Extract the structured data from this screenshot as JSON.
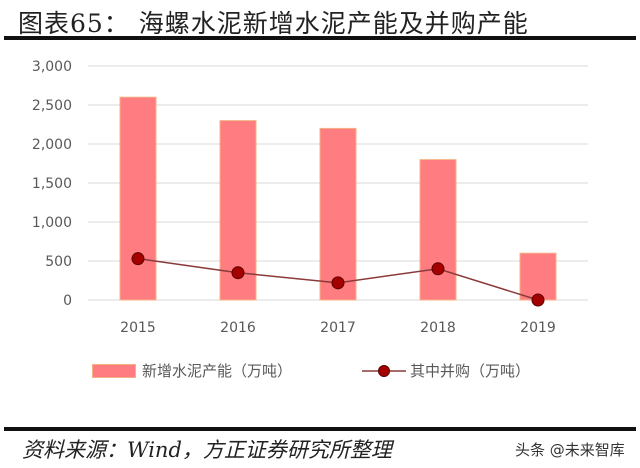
{
  "title": "图表65： 海螺水泥新增水泥产能及并购产能",
  "source": "资料来源：Wind，方正证券研究所整理",
  "watermark": "头条 @未来智库",
  "colors": {
    "bar": "#ff7c80",
    "bar_border": "#f4b183",
    "line": "#8b3a3a",
    "marker": "#a50000",
    "grid": "#d9d9d9"
  },
  "legend": {
    "bar_label": "新增水泥产能（万吨）",
    "line_label": "其中并购（万吨）"
  },
  "chart_data": {
    "type": "bar",
    "title": "海螺水泥新增水泥产能及并购产能",
    "xlabel": "",
    "ylabel": "",
    "categories": [
      "2015",
      "2016",
      "2017",
      "2018",
      "2019"
    ],
    "series": [
      {
        "name": "新增水泥产能（万吨）",
        "type": "bar",
        "values": [
          2600,
          2300,
          2200,
          1800,
          600
        ]
      },
      {
        "name": "其中并购（万吨）",
        "type": "line",
        "values": [
          530,
          350,
          220,
          400,
          0
        ]
      }
    ],
    "ylim": [
      0,
      3000
    ],
    "yticks": [
      "0",
      "500",
      "1,000",
      "1,500",
      "2,000",
      "2,500",
      "3,000"
    ],
    "grid": true,
    "legend_position": "bottom"
  }
}
